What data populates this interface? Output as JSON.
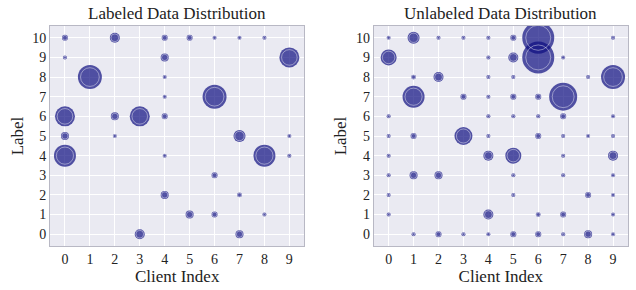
{
  "chart_data": [
    {
      "type": "scatter",
      "title": "Labeled Data Distribution",
      "x_label": "Client Index",
      "y_label": "Label",
      "color": "#0d0d80",
      "marker": "circle",
      "grid": true,
      "xlim": [
        -0.6,
        9.6
      ],
      "ylim": [
        -0.6,
        10.6
      ],
      "xticks": [
        0,
        1,
        2,
        3,
        4,
        5,
        6,
        7,
        8,
        9
      ],
      "yticks": [
        0,
        1,
        2,
        3,
        4,
        5,
        6,
        7,
        8,
        9,
        10
      ],
      "x": [
        0,
        0,
        0,
        0,
        0,
        1,
        2,
        2,
        2,
        3,
        3,
        4,
        4,
        4,
        4,
        4,
        4,
        4,
        5,
        5,
        6,
        6,
        6,
        6,
        7,
        7,
        7,
        7,
        8,
        8,
        8,
        9,
        9,
        9
      ],
      "y": [
        10,
        9,
        6,
        5,
        4,
        8,
        10,
        6,
        5,
        6,
        0,
        10,
        9,
        8,
        7,
        6,
        4,
        2,
        10,
        1,
        10,
        7,
        3,
        1,
        10,
        5,
        2,
        0,
        10,
        4,
        1,
        9,
        5,
        4
      ],
      "size": [
        1.5,
        0.8,
        5,
        2,
        5.5,
        6,
        2.5,
        2,
        1,
        5,
        2.5,
        1.5,
        2,
        1,
        1,
        1.5,
        1,
        2,
        1.5,
        2,
        1,
        6,
        1.5,
        1.5,
        1,
        3,
        1.2,
        2,
        0.8,
        5.5,
        0.8,
        5,
        1,
        0.8
      ]
    },
    {
      "type": "scatter",
      "title": "Unlabeled Data Distribution",
      "x_label": "Client Index",
      "y_label": "Label",
      "color": "#0d0d80",
      "marker": "circle",
      "grid": true,
      "xlim": [
        -0.6,
        9.6
      ],
      "ylim": [
        -0.6,
        10.6
      ],
      "xticks": [
        0,
        1,
        2,
        3,
        4,
        5,
        6,
        7,
        8,
        9
      ],
      "yticks": [
        0,
        1,
        2,
        3,
        4,
        5,
        6,
        7,
        8,
        9,
        10
      ],
      "x": [
        0,
        0,
        0,
        0,
        0,
        0,
        0,
        0,
        1,
        1,
        1,
        1,
        1,
        1,
        2,
        2,
        2,
        2,
        3,
        3,
        3,
        3,
        4,
        4,
        4,
        4,
        4,
        4,
        4,
        4,
        4,
        5,
        5,
        5,
        5,
        5,
        5,
        5,
        5,
        5,
        6,
        6,
        6,
        6,
        6,
        6,
        6,
        7,
        7,
        7,
        7,
        7,
        7,
        7,
        7,
        8,
        8,
        8,
        8,
        9,
        9,
        9,
        9,
        9,
        9,
        9,
        9,
        9
      ],
      "y": [
        10,
        9,
        6,
        5,
        4,
        3,
        2,
        1,
        10,
        8,
        7,
        5,
        3,
        0,
        10,
        8,
        3,
        0,
        10,
        7,
        5,
        0,
        10,
        9,
        8,
        7,
        6,
        5,
        4,
        1,
        0,
        10,
        9,
        8,
        7,
        6,
        4,
        3,
        2,
        0,
        10,
        9,
        7,
        6,
        5,
        1,
        0,
        9,
        7,
        6,
        5,
        4,
        3,
        1,
        0,
        8,
        5,
        2,
        0,
        10,
        8,
        6,
        5,
        4,
        3,
        2,
        1,
        0
      ],
      "size": [
        1,
        4,
        0.8,
        0.8,
        0.8,
        0.8,
        0.8,
        0.8,
        3,
        1.2,
        5.5,
        1.5,
        2,
        0.8,
        0.8,
        2.5,
        2,
        1.5,
        0.8,
        1.5,
        4.5,
        0.8,
        0.8,
        0.8,
        0.8,
        0.8,
        0.8,
        0.8,
        2.5,
        2.5,
        1,
        1.5,
        2.5,
        0.8,
        1.5,
        0.8,
        4,
        0.8,
        0.8,
        1.5,
        8,
        8,
        1.5,
        0.8,
        1.5,
        1.2,
        1.5,
        1,
        7,
        1.5,
        0.8,
        0.8,
        0.8,
        1.5,
        0.8,
        0.8,
        1,
        1.5,
        2,
        0.8,
        6,
        1,
        0.8,
        2.5,
        1,
        1,
        1,
        1
      ]
    }
  ]
}
